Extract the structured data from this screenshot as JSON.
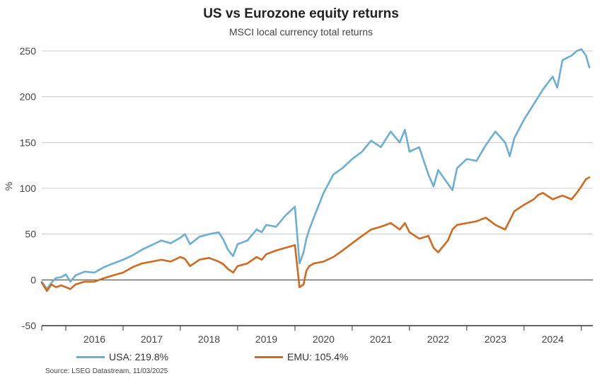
{
  "header": {
    "title": "US vs Eurozone equity returns",
    "subtitle": "MSCI local currency total returns"
  },
  "legend": {
    "usa_label": "USA: 219.8%",
    "emu_label": "EMU: 105.4%"
  },
  "footer": {
    "source": "Source: LSEG Datastream, 11/03/2025"
  },
  "colors": {
    "usa": "#6baed6",
    "emu": "#d2691e",
    "grid": "#bdbdbd",
    "zero": "#333333"
  },
  "chart_data": {
    "type": "line",
    "title": "US vs Eurozone equity returns",
    "subtitle": "MSCI local currency total returns",
    "ylabel": "%",
    "xlabel": "",
    "ylim": [
      -50,
      250
    ],
    "yticks": [
      -50,
      0,
      50,
      100,
      150,
      200,
      250
    ],
    "xlim": [
      2015.58,
      2025.2
    ],
    "xticks": [
      "2016",
      "2017",
      "2018",
      "2019",
      "2020",
      "2021",
      "2022",
      "2023",
      "2024"
    ],
    "grid": true,
    "legend_position": "bottom",
    "series": [
      {
        "name": "USA",
        "label": "USA: 219.8%",
        "color": "#6baed6",
        "x": [
          2015.58,
          2015.67,
          2015.75,
          2015.83,
          2015.92,
          2016.0,
          2016.08,
          2016.17,
          2016.33,
          2016.5,
          2016.67,
          2016.83,
          2017.0,
          2017.17,
          2017.33,
          2017.5,
          2017.67,
          2017.83,
          2018.0,
          2018.08,
          2018.17,
          2018.33,
          2018.5,
          2018.67,
          2018.75,
          2018.83,
          2018.92,
          2019.0,
          2019.17,
          2019.33,
          2019.42,
          2019.5,
          2019.67,
          2019.83,
          2020.0,
          2020.08,
          2020.15,
          2020.2,
          2020.25,
          2020.33,
          2020.5,
          2020.67,
          2020.83,
          2021.0,
          2021.17,
          2021.33,
          2021.5,
          2021.67,
          2021.83,
          2021.92,
          2022.0,
          2022.17,
          2022.33,
          2022.42,
          2022.5,
          2022.67,
          2022.75,
          2022.83,
          2023.0,
          2023.17,
          2023.33,
          2023.5,
          2023.67,
          2023.75,
          2023.83,
          2024.0,
          2024.17,
          2024.25,
          2024.33,
          2024.5,
          2024.58,
          2024.67,
          2024.83,
          2024.92,
          2025.0,
          2025.08,
          2025.14
        ],
        "y": [
          -2,
          -10,
          -3,
          2,
          3,
          6,
          -2,
          5,
          9,
          8,
          14,
          18,
          22,
          27,
          33,
          38,
          43,
          40,
          46,
          50,
          39,
          47,
          50,
          52,
          44,
          33,
          26,
          39,
          43,
          55,
          52,
          60,
          58,
          70,
          80,
          18,
          30,
          45,
          55,
          68,
          95,
          115,
          122,
          132,
          140,
          152,
          145,
          162,
          150,
          164,
          140,
          145,
          115,
          102,
          120,
          105,
          98,
          122,
          132,
          130,
          147,
          162,
          150,
          135,
          155,
          175,
          192,
          200,
          208,
          222,
          210,
          240,
          245,
          250,
          252,
          245,
          232
        ]
      },
      {
        "name": "EMU",
        "label": "EMU: 105.4%",
        "color": "#d2691e",
        "x": [
          2015.58,
          2015.67,
          2015.75,
          2015.83,
          2015.92,
          2016.0,
          2016.08,
          2016.17,
          2016.33,
          2016.5,
          2016.67,
          2016.83,
          2017.0,
          2017.17,
          2017.33,
          2017.5,
          2017.67,
          2017.83,
          2018.0,
          2018.08,
          2018.17,
          2018.33,
          2018.5,
          2018.67,
          2018.75,
          2018.83,
          2018.92,
          2019.0,
          2019.17,
          2019.33,
          2019.42,
          2019.5,
          2019.67,
          2019.83,
          2020.0,
          2020.08,
          2020.15,
          2020.2,
          2020.25,
          2020.33,
          2020.5,
          2020.67,
          2020.83,
          2021.0,
          2021.17,
          2021.33,
          2021.5,
          2021.67,
          2021.83,
          2021.92,
          2022.0,
          2022.17,
          2022.33,
          2022.42,
          2022.5,
          2022.67,
          2022.75,
          2022.83,
          2023.0,
          2023.17,
          2023.33,
          2023.5,
          2023.67,
          2023.75,
          2023.83,
          2024.0,
          2024.17,
          2024.25,
          2024.33,
          2024.5,
          2024.58,
          2024.67,
          2024.83,
          2024.92,
          2025.0,
          2025.08,
          2025.14
        ],
        "y": [
          -3,
          -12,
          -5,
          -8,
          -6,
          -8,
          -10,
          -5,
          -2,
          -2,
          2,
          5,
          8,
          14,
          18,
          20,
          22,
          20,
          25,
          23,
          15,
          22,
          24,
          20,
          17,
          12,
          8,
          15,
          18,
          25,
          22,
          28,
          32,
          35,
          38,
          -8,
          -5,
          10,
          15,
          18,
          20,
          25,
          32,
          40,
          48,
          55,
          58,
          62,
          55,
          62,
          52,
          45,
          48,
          35,
          30,
          43,
          55,
          60,
          62,
          64,
          68,
          60,
          55,
          65,
          75,
          82,
          88,
          93,
          95,
          88,
          90,
          92,
          88,
          95,
          102,
          110,
          112
        ]
      }
    ]
  }
}
